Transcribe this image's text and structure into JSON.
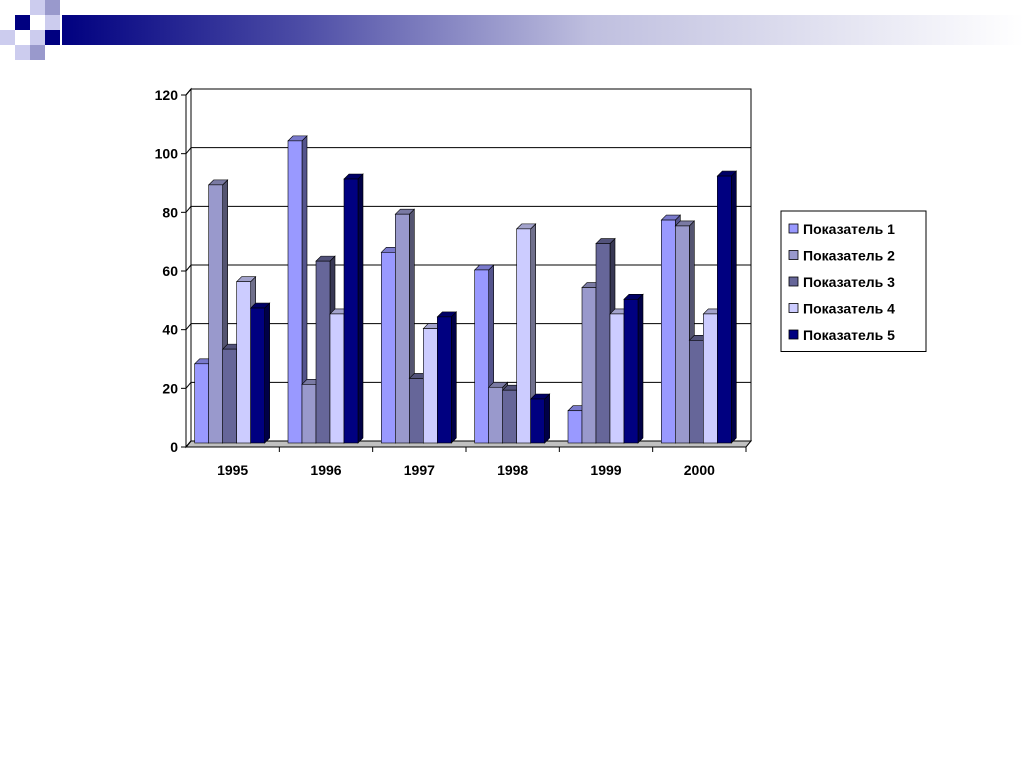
{
  "colors": {
    "header_dark": "#000080",
    "header_light": "#9999cc",
    "series": [
      "#9999ff",
      "#9999cc",
      "#666699",
      "#ccccff",
      "#000080"
    ],
    "plot_background": "#ffffff",
    "gridline": "#000000"
  },
  "chart_data": {
    "type": "bar",
    "style": "3d-clustered-column",
    "categories": [
      "1995",
      "1996",
      "1997",
      "1998",
      "1999",
      "2000"
    ],
    "series": [
      {
        "name": "Показатель 1",
        "values": [
          27,
          103,
          65,
          59,
          11,
          76
        ]
      },
      {
        "name": "Показатель 2",
        "values": [
          88,
          20,
          78,
          19,
          53,
          74
        ]
      },
      {
        "name": "Показатель 3",
        "values": [
          32,
          62,
          22,
          18,
          68,
          35
        ]
      },
      {
        "name": "Показатель 4",
        "values": [
          55,
          44,
          39,
          73,
          44,
          44
        ]
      },
      {
        "name": "Показатель 5",
        "values": [
          46,
          90,
          43,
          15,
          49,
          91
        ]
      }
    ],
    "ylim": [
      0,
      120
    ],
    "yticks": [
      "0",
      "20",
      "40",
      "60",
      "80",
      "100",
      "120"
    ],
    "grid": true,
    "legend_position": "right"
  }
}
